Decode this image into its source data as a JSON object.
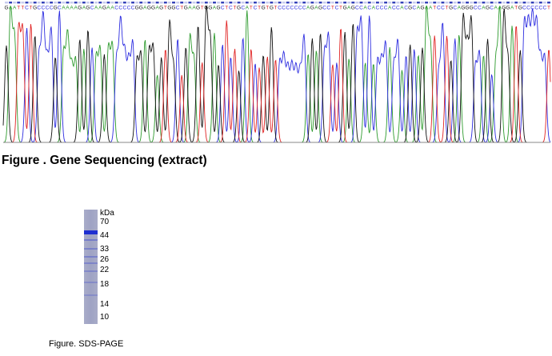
{
  "sequencing": {
    "sequence": "GAATTCTGCCCCGCAAAAGAGCAAGAACCCCCGGAGGAGTGGCTGAAGTGGAGCTCTGCATCTGTGTCCCCCCCAGAGCCTCTGAGCCACACCCACCACGCAGAATCCTGCAGGGCCAGCAAGGATGCCCCCCT",
    "colors": {
      "A": "#2e9b2e",
      "C": "#2d2de0",
      "G": "#111111",
      "T": "#e02424"
    },
    "caption": "Figure . Gene Sequencing (extract)"
  },
  "gel": {
    "unit_label": "kDa",
    "markers": [
      "70",
      "44",
      "33",
      "26",
      "22",
      "18",
      "14",
      "10"
    ],
    "caption": "Figure. SDS-PAGE",
    "band_color": "#1f2fd0"
  }
}
